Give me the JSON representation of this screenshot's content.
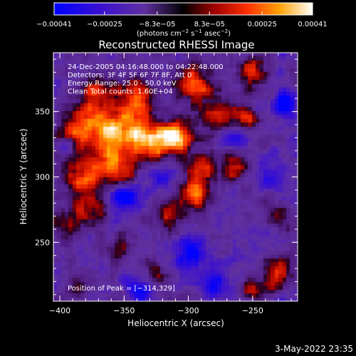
{
  "chart_data": {
    "type": "heatmap",
    "title": "Reconstructed RHESSI Image",
    "xlabel": "Heliocentric X (arcsec)",
    "ylabel": "Heliocentric Y (arcsec)",
    "xlim": [
      -405,
      -215
    ],
    "ylim": [
      205,
      395
    ],
    "xticks": [
      -400,
      -350,
      -300,
      -250
    ],
    "yticks": [
      250,
      300,
      350
    ],
    "x_tick_labels": [
      "−400",
      "−350",
      "−300",
      "−250"
    ],
    "y_tick_labels": [
      "250",
      "300",
      "350"
    ],
    "colorbar": {
      "range": [
        -0.00041,
        0.00041
      ],
      "ticks": [
        -0.00041,
        -0.00025,
        -8.3e-05,
        8.3e-05,
        0.00025,
        0.00041
      ],
      "tick_labels": [
        "−0.00041",
        "−0.00025",
        "−8.3e−05",
        "8.3e−05",
        "0.00025",
        "0.00041"
      ],
      "unit_text": "(photons cm",
      "unit_sup1": "−2",
      "unit_mid1": " s",
      "unit_sup2": "−1",
      "unit_mid2": " asec",
      "unit_sup3": "−2",
      "unit_end": ")"
    },
    "info_lines": [
      "24-Dec-2005 04:16:48.000 to 04:22:48.000",
      "Detectors: 3F 4F 5F 6F 7F 8F, Att 0",
      "Energy Range: 25.0 - 50.0 keV",
      "Clean     Total counts: 1.60E+04"
    ],
    "peak_label": "Position of Peak = [−314,329]",
    "peak": [
      -314,
      329
    ],
    "bright_features": [
      {
        "x": -310,
        "y": 330,
        "amp": 1.0,
        "s": 9
      },
      {
        "x": -330,
        "y": 328,
        "amp": 0.75,
        "s": 10
      },
      {
        "x": -350,
        "y": 335,
        "amp": 0.8,
        "s": 12
      },
      {
        "x": -375,
        "y": 340,
        "amp": 0.65,
        "s": 12
      },
      {
        "x": -395,
        "y": 330,
        "amp": 0.55,
        "s": 9
      },
      {
        "x": -365,
        "y": 310,
        "amp": 0.6,
        "s": 12
      },
      {
        "x": -385,
        "y": 300,
        "amp": 0.5,
        "s": 9
      },
      {
        "x": -350,
        "y": 300,
        "amp": 0.5,
        "s": 8
      },
      {
        "x": -340,
        "y": 360,
        "amp": 0.6,
        "s": 10
      },
      {
        "x": -370,
        "y": 365,
        "amp": 0.55,
        "s": 10
      },
      {
        "x": -295,
        "y": 370,
        "amp": 0.65,
        "s": 11
      },
      {
        "x": -275,
        "y": 345,
        "amp": 0.6,
        "s": 10
      },
      {
        "x": -250,
        "y": 380,
        "amp": 0.6,
        "s": 8
      },
      {
        "x": -255,
        "y": 345,
        "amp": 0.5,
        "s": 7
      },
      {
        "x": -290,
        "y": 305,
        "amp": 0.55,
        "s": 10
      },
      {
        "x": -265,
        "y": 310,
        "amp": 0.5,
        "s": 8
      },
      {
        "x": -295,
        "y": 285,
        "amp": 0.65,
        "s": 8
      },
      {
        "x": -315,
        "y": 270,
        "amp": 0.45,
        "s": 8
      },
      {
        "x": -380,
        "y": 275,
        "amp": 0.45,
        "s": 10
      },
      {
        "x": -400,
        "y": 260,
        "amp": 0.4,
        "s": 8
      },
      {
        "x": -230,
        "y": 225,
        "amp": 0.6,
        "s": 8
      },
      {
        "x": -250,
        "y": 215,
        "amp": 0.45,
        "s": 7
      },
      {
        "x": -325,
        "y": 225,
        "amp": 0.4,
        "s": 8
      },
      {
        "x": -355,
        "y": 245,
        "amp": 0.35,
        "s": 7
      },
      {
        "x": -230,
        "y": 270,
        "amp": 0.4,
        "s": 7
      },
      {
        "x": -385,
        "y": 215,
        "amp": 0.3,
        "s": 7
      }
    ],
    "dark_features": [
      {
        "x": -350,
        "y": 285,
        "amp": -0.8,
        "s": 8
      },
      {
        "x": -265,
        "y": 330,
        "amp": -0.6,
        "s": 7
      },
      {
        "x": -225,
        "y": 355,
        "amp": -0.8,
        "s": 6
      },
      {
        "x": -395,
        "y": 325,
        "amp": -0.6,
        "s": 5
      },
      {
        "x": -300,
        "y": 240,
        "amp": -0.6,
        "s": 9
      },
      {
        "x": -340,
        "y": 215,
        "amp": -0.5,
        "s": 8
      },
      {
        "x": -280,
        "y": 220,
        "amp": -0.4,
        "s": 8
      },
      {
        "x": -235,
        "y": 300,
        "amp": -0.4,
        "s": 8
      },
      {
        "x": -320,
        "y": 300,
        "amp": -0.35,
        "s": 6
      }
    ],
    "grid": false
  },
  "footer": {
    "date": "3-May-2022 23:35"
  },
  "colors": {
    "background": "#000000",
    "text": "#ffffff"
  }
}
